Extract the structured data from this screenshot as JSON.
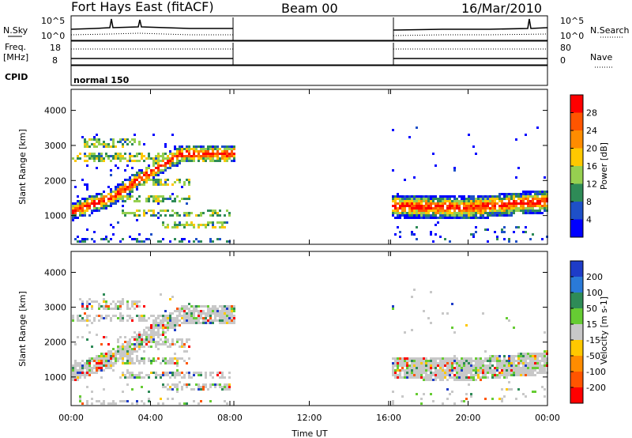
{
  "header": {
    "title": "Fort Hays East (fitACF)",
    "beam": "Beam 00",
    "date": "16/Mar/2010"
  },
  "panels": {
    "nsky": {
      "label": "N.Sky",
      "right_label": "N.Search",
      "ticks": [
        "10^5",
        "10^0"
      ],
      "right_ticks": [
        "10^5",
        "10^0"
      ]
    },
    "freq": {
      "label_top": "Freq.",
      "label_bottom": "[MHz]",
      "ticks": [
        "18",
        "8"
      ],
      "right_label": "Nave",
      "right_ticks": [
        "80",
        "0"
      ]
    },
    "cpid": {
      "label": "CPID",
      "value": "normal 150"
    }
  },
  "time_axis": {
    "label": "Time UT",
    "ticks": [
      "00:00",
      "04:00",
      "08:00",
      "12:00",
      "16:00",
      "20:00",
      "00:00"
    ]
  },
  "power_colorbar": {
    "label": "Power [dB]",
    "ticks": [
      "28",
      "24",
      "20",
      "16",
      "12",
      "8",
      "4"
    ],
    "colors": [
      "#ff0000",
      "#ff5500",
      "#ff8c00",
      "#ffc800",
      "#96d050",
      "#2e8b57",
      "#1e50c8",
      "#0000ff"
    ]
  },
  "velocity_colorbar": {
    "label": "Velocity [m s-1]",
    "ticks": [
      "200",
      "100",
      "50",
      "15",
      "-15",
      "-50",
      "-100",
      "-200"
    ],
    "colors": [
      "#1e3cc8",
      "#2a7ad8",
      "#2e8b57",
      "#66cc33",
      "#c8c8c8",
      "#ffc800",
      "#ff8c00",
      "#ff5500",
      "#ff0000"
    ]
  },
  "chart_data": [
    {
      "type": "heatmap",
      "ylabel": "Slant Range [km]",
      "xlabel": "Time UT",
      "yticks": [
        1000,
        2000,
        3000,
        4000
      ],
      "ylim": [
        180,
        4600
      ],
      "xlim": [
        0,
        24
      ],
      "colorbar_label": "Power [dB]",
      "data_gap_hours": [
        8.2,
        16.1
      ],
      "features": [
        {
          "name": "band",
          "x": [
            0.0,
            2.0,
            4.0,
            5.5
          ],
          "y": [
            1150,
            1550,
            2300,
            2800
          ],
          "value_db": 22
        },
        {
          "name": "layer",
          "x": [
            16.1,
            20.0,
            24.0
          ],
          "y": [
            1300,
            1250,
            1450
          ],
          "value_db": 20
        }
      ]
    },
    {
      "type": "heatmap",
      "ylabel": "Slant Range [km]",
      "xlabel": "Time UT",
      "yticks": [
        1000,
        2000,
        3000,
        4000
      ],
      "ylim": [
        180,
        4600
      ],
      "xlim": [
        0,
        24
      ],
      "colorbar_label": "Velocity [m s-1]",
      "data_gap_hours": [
        8.2,
        16.1
      ],
      "features": [
        {
          "name": "band",
          "x": [
            0.0,
            2.0,
            4.0,
            5.5
          ],
          "y": [
            1150,
            1550,
            2300,
            2800
          ],
          "value_ms": 0
        },
        {
          "name": "layer",
          "x": [
            16.1,
            20.0,
            24.0
          ],
          "y": [
            1300,
            1250,
            1450
          ],
          "value_ms": 0
        }
      ]
    }
  ]
}
